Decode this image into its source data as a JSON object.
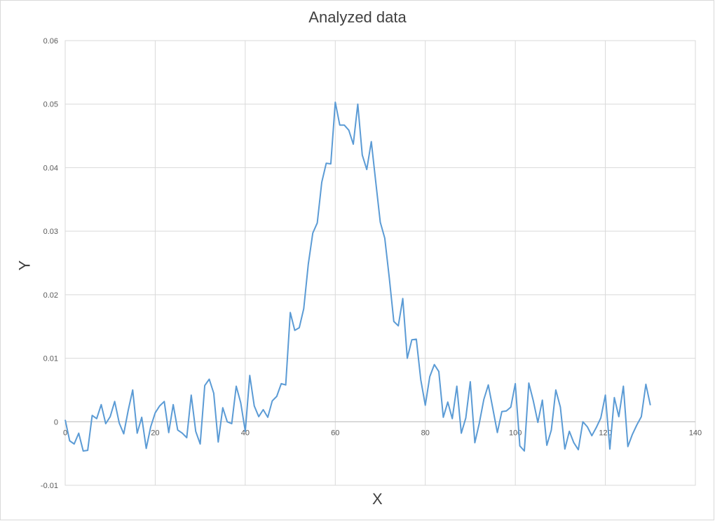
{
  "chart_data": {
    "type": "line",
    "title": "Analyzed data",
    "xlabel": "X",
    "ylabel": "Y",
    "xlim": [
      0,
      140
    ],
    "ylim": [
      -0.01,
      0.06
    ],
    "x_ticks": [
      0,
      20,
      40,
      60,
      80,
      100,
      120,
      140
    ],
    "y_ticks": [
      -0.01,
      0,
      0.01,
      0.02,
      0.03,
      0.04,
      0.05,
      0.06
    ],
    "x_tick_labels": [
      "0",
      "20",
      "40",
      "60",
      "80",
      "100",
      "120",
      "140"
    ],
    "y_tick_labels": [
      "-0.01",
      "0",
      "0.01",
      "0.02",
      "0.03",
      "0.04",
      "0.05",
      "0.06"
    ],
    "grid": true,
    "legend": "none",
    "line_color": "#5b9bd5",
    "series": [
      {
        "x": [
          0,
          1,
          2,
          3,
          4,
          5,
          6,
          7,
          8,
          9,
          10,
          11,
          12,
          13,
          14,
          15,
          16,
          17,
          18,
          19,
          20,
          21,
          22,
          23,
          24,
          25,
          26,
          27,
          28,
          29,
          30,
          31,
          32,
          33,
          34,
          35,
          36,
          37,
          38,
          39,
          40,
          41,
          42,
          43,
          44,
          45,
          46,
          47,
          48,
          49,
          50,
          51,
          52,
          53,
          54,
          55,
          56,
          57,
          58,
          59,
          60,
          61,
          62,
          63,
          64,
          65,
          66,
          67,
          68,
          69,
          70,
          71,
          72,
          73,
          74,
          75,
          76,
          77,
          78,
          79,
          80,
          81,
          82,
          83,
          84,
          85,
          86,
          87,
          88,
          89,
          90,
          91,
          92,
          93,
          94,
          95,
          96,
          97,
          98,
          99,
          100,
          101,
          102,
          103,
          104,
          105,
          106,
          107,
          108,
          109,
          110,
          111,
          112,
          113,
          114,
          115,
          116,
          117,
          118,
          119,
          120,
          121,
          122,
          123,
          124,
          125,
          126,
          127,
          128,
          129,
          130
        ],
        "y": [
          0.0003,
          -0.003,
          -0.0035,
          -0.0018,
          -0.0046,
          -0.0045,
          0.001,
          0.0005,
          0.0027,
          -0.0003,
          0.0008,
          0.0032,
          -0.0002,
          -0.0019,
          0.0018,
          0.005,
          -0.0018,
          0.0007,
          -0.0042,
          -0.0008,
          0.0014,
          0.0025,
          0.0032,
          -0.0017,
          0.0027,
          -0.0013,
          -0.0018,
          -0.0025,
          0.0042,
          -0.0015,
          -0.0035,
          0.0057,
          0.0067,
          0.0045,
          -0.0032,
          0.0022,
          0.0,
          -0.0003,
          0.0056,
          0.003,
          -0.0015,
          0.0073,
          0.0025,
          0.0008,
          0.0019,
          0.0007,
          0.0033,
          0.004,
          0.006,
          0.0058,
          0.0172,
          0.0144,
          0.0148,
          0.0178,
          0.0248,
          0.0297,
          0.0313,
          0.0377,
          0.0407,
          0.0406,
          0.0503,
          0.0467,
          0.0467,
          0.0459,
          0.0437,
          0.05,
          0.042,
          0.0397,
          0.0441,
          0.0377,
          0.0314,
          0.0289,
          0.0227,
          0.0158,
          0.0151,
          0.0194,
          0.01,
          0.0129,
          0.013,
          0.0066,
          0.0026,
          0.0071,
          0.009,
          0.0079,
          0.0007,
          0.0031,
          0.0005,
          0.0056,
          -0.0018,
          0.0006,
          0.0063,
          -0.0033,
          -0.0002,
          0.0035,
          0.0058,
          0.0021,
          -0.0017,
          0.0016,
          0.0017,
          0.0023,
          0.006,
          -0.0038,
          -0.0046,
          0.0061,
          0.0033,
          -0.0001,
          0.0034,
          -0.0037,
          -0.0013,
          0.005,
          0.0023,
          -0.0043,
          -0.0015,
          -0.0033,
          -0.0044,
          0.0,
          -0.0008,
          -0.0022,
          -0.0009,
          0.0006,
          0.0042,
          -0.0043,
          0.0038,
          0.0008,
          0.0056,
          -0.0039,
          -0.002,
          -0.0005,
          0.0008,
          0.0059,
          0.0026
        ]
      }
    ]
  }
}
